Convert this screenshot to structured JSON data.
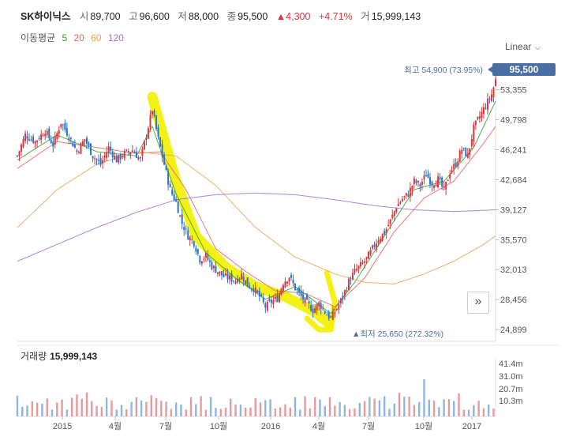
{
  "header": {
    "name": "SK하이닉스",
    "open_label": "시",
    "open": "89,700",
    "high_label": "고",
    "high": "96,600",
    "low_label": "저",
    "low": "88,000",
    "close_label": "종",
    "close": "95,500",
    "change": "▲4,300",
    "change_pct": "+4.71%",
    "volume_label": "거",
    "volume": "15,999,143"
  },
  "ma_legend": {
    "label": "이동평균",
    "items": [
      {
        "period": "5",
        "color": "#2ca02c"
      },
      {
        "period": "20",
        "color": "#e8605f"
      },
      {
        "period": "60",
        "color": "#f0a04b"
      },
      {
        "period": "120",
        "color": "#a06fd6"
      }
    ]
  },
  "scale_mode": "Linear",
  "nav_button": "»",
  "annotations": {
    "high": "최고 54,900 (73.95%)",
    "low": "최저 25,650 (272.32%)",
    "current_price": "95,500"
  },
  "volume_panel": {
    "label": "거래량",
    "value": "15,999,143"
  },
  "chart_data": {
    "type": "candlestick",
    "x_ticks": [
      "2015",
      "4월",
      "7월",
      "10월",
      "2016",
      "4월",
      "7월",
      "10월",
      "2017"
    ],
    "y_ticks": [
      "53,355",
      "49,798",
      "46,241",
      "42,684",
      "39,127",
      "35,570",
      "32,013",
      "28,456",
      "24,899"
    ],
    "y_range": [
      23500,
      56500
    ],
    "volume_ticks": [
      "41.4m",
      "31.0m",
      "20.7m",
      "10.3m"
    ],
    "series": [
      {
        "name": "5",
        "color": "#2ca02c"
      },
      {
        "name": "20",
        "color": "#e8605f"
      },
      {
        "name": "60",
        "color": "#f0a04b"
      },
      {
        "name": "120",
        "color": "#a06fd6"
      }
    ],
    "close_path": [
      [
        0,
        45500
      ],
      [
        4,
        48000
      ],
      [
        9,
        47200
      ],
      [
        14,
        48500
      ],
      [
        18,
        46800
      ],
      [
        22,
        49500
      ],
      [
        26,
        47800
      ],
      [
        30,
        46000
      ],
      [
        34,
        47500
      ],
      [
        38,
        45500
      ],
      [
        42,
        44500
      ],
      [
        46,
        46500
      ],
      [
        50,
        45000
      ],
      [
        54,
        45800
      ],
      [
        58,
        46200
      ],
      [
        62,
        45000
      ],
      [
        65,
        48000
      ],
      [
        68,
        51000
      ],
      [
        71,
        47500
      ],
      [
        74,
        44500
      ],
      [
        77,
        41500
      ],
      [
        80,
        40000
      ],
      [
        83,
        37500
      ],
      [
        86,
        36000
      ],
      [
        89,
        35200
      ],
      [
        92,
        33200
      ],
      [
        95,
        33600
      ],
      [
        98,
        32400
      ],
      [
        101,
        31800
      ],
      [
        104,
        31200
      ],
      [
        107,
        31000
      ],
      [
        110,
        30700
      ],
      [
        113,
        31400
      ],
      [
        116,
        30200
      ],
      [
        119,
        29800
      ],
      [
        122,
        28800
      ],
      [
        125,
        27600
      ],
      [
        128,
        28200
      ],
      [
        131,
        28600
      ],
      [
        134,
        30500
      ],
      [
        137,
        31200
      ],
      [
        140,
        29800
      ],
      [
        143,
        28800
      ],
      [
        146,
        28000
      ],
      [
        149,
        27200
      ],
      [
        152,
        28000
      ],
      [
        155,
        27000
      ],
      [
        158,
        26200
      ],
      [
        161,
        27400
      ],
      [
        164,
        28800
      ],
      [
        167,
        30600
      ],
      [
        170,
        31800
      ],
      [
        173,
        32500
      ],
      [
        176,
        33300
      ],
      [
        179,
        34500
      ],
      [
        182,
        35700
      ],
      [
        185,
        36400
      ],
      [
        188,
        37800
      ],
      [
        191,
        39500
      ],
      [
        194,
        40400
      ],
      [
        197,
        41000
      ],
      [
        200,
        42500
      ],
      [
        203,
        42000
      ],
      [
        206,
        43300
      ],
      [
        209,
        42200
      ],
      [
        212,
        42700
      ],
      [
        215,
        41400
      ],
      [
        218,
        43600
      ],
      [
        221,
        44600
      ],
      [
        224,
        46300
      ],
      [
        227,
        45500
      ],
      [
        230,
        48800
      ],
      [
        233,
        50200
      ],
      [
        236,
        51500
      ],
      [
        239,
        52800
      ],
      [
        241,
        54500
      ]
    ],
    "moving_averages": {
      "5": [
        [
          0,
          45000
        ],
        [
          20,
          48000
        ],
        [
          40,
          46000
        ],
        [
          60,
          45500
        ],
        [
          68,
          49000
        ],
        [
          80,
          41000
        ],
        [
          95,
          34000
        ],
        [
          110,
          31000
        ],
        [
          125,
          28500
        ],
        [
          140,
          30000
        ],
        [
          158,
          26800
        ],
        [
          170,
          30500
        ],
        [
          185,
          36000
        ],
        [
          200,
          41500
        ],
        [
          215,
          42500
        ],
        [
          230,
          46500
        ],
        [
          241,
          52000
        ]
      ],
      "20": [
        [
          0,
          44000
        ],
        [
          20,
          47200
        ],
        [
          40,
          46500
        ],
        [
          60,
          45800
        ],
        [
          72,
          46000
        ],
        [
          85,
          41500
        ],
        [
          100,
          34500
        ],
        [
          115,
          31800
        ],
        [
          130,
          29500
        ],
        [
          145,
          29200
        ],
        [
          160,
          27600
        ],
        [
          175,
          31000
        ],
        [
          190,
          36500
        ],
        [
          205,
          40500
        ],
        [
          220,
          42500
        ],
        [
          235,
          47000
        ],
        [
          241,
          49000
        ]
      ],
      "60": [
        [
          0,
          37000
        ],
        [
          20,
          41500
        ],
        [
          40,
          44500
        ],
        [
          60,
          46000
        ],
        [
          80,
          45500
        ],
        [
          100,
          42000
        ],
        [
          120,
          37000
        ],
        [
          140,
          33500
        ],
        [
          160,
          31500
        ],
        [
          175,
          30500
        ],
        [
          190,
          30300
        ],
        [
          205,
          31500
        ],
        [
          220,
          33000
        ],
        [
          235,
          35000
        ],
        [
          241,
          36000
        ]
      ],
      "120": [
        [
          0,
          33000
        ],
        [
          20,
          35000
        ],
        [
          40,
          37000
        ],
        [
          60,
          38800
        ],
        [
          80,
          40300
        ],
        [
          100,
          40900
        ],
        [
          120,
          41100
        ],
        [
          140,
          40900
        ],
        [
          160,
          40300
        ],
        [
          180,
          39600
        ],
        [
          200,
          39100
        ],
        [
          220,
          38900
        ],
        [
          241,
          39100
        ]
      ]
    },
    "x_label_positions": [
      30,
      58,
      82,
      106,
      132,
      156,
      180,
      206,
      232
    ],
    "x_range": [
      0,
      241
    ]
  }
}
